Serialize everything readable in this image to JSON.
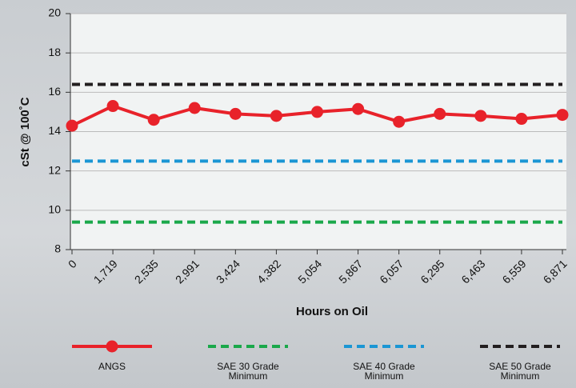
{
  "chart_data": {
    "type": "line",
    "x_label": "Hours on Oil",
    "y_label": "cSt @ 100˚C",
    "categories": [
      "0",
      "1,719",
      "2,535",
      "2,991",
      "3,424",
      "4,382",
      "5,054",
      "5,867",
      "6,057",
      "6,295",
      "6,463",
      "6,559",
      "6,871"
    ],
    "series": [
      {
        "name": "ANGS",
        "color": "#e8222a",
        "style": "solid",
        "markers": true,
        "values": [
          14.3,
          15.3,
          14.6,
          15.2,
          14.9,
          14.8,
          15.0,
          15.15,
          14.5,
          14.9,
          14.8,
          14.65,
          14.85
        ]
      },
      {
        "name": "SAE 30 Grade Minimum",
        "color": "#1aa84a",
        "style": "dashed",
        "markers": false,
        "values": [
          9.4,
          9.4,
          9.4,
          9.4,
          9.4,
          9.4,
          9.4,
          9.4,
          9.4,
          9.4,
          9.4,
          9.4,
          9.4
        ]
      },
      {
        "name": "SAE 40 Grade Minimum",
        "color": "#1b96d4",
        "style": "dashed",
        "markers": false,
        "values": [
          12.5,
          12.5,
          12.5,
          12.5,
          12.5,
          12.5,
          12.5,
          12.5,
          12.5,
          12.5,
          12.5,
          12.5,
          12.5
        ]
      },
      {
        "name": "SAE 50 Grade Minimum",
        "color": "#231f20",
        "style": "dashed",
        "markers": false,
        "values": [
          16.4,
          16.4,
          16.4,
          16.4,
          16.4,
          16.4,
          16.4,
          16.4,
          16.4,
          16.4,
          16.4,
          16.4,
          16.4
        ]
      }
    ],
    "ylim": [
      8,
      20
    ],
    "yticks": [
      8,
      10,
      12,
      14,
      16,
      18,
      20
    ],
    "grid": true,
    "legend": "bottom"
  }
}
